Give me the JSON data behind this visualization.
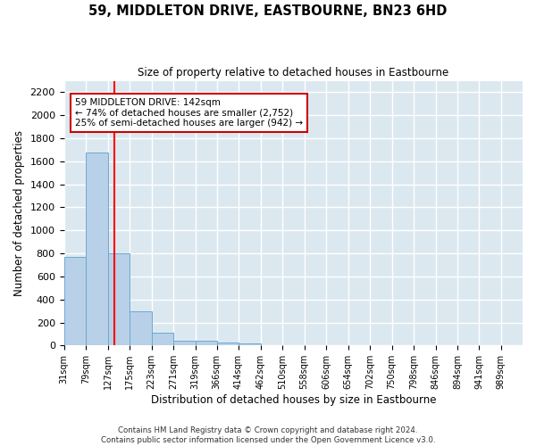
{
  "title": "59, MIDDLETON DRIVE, EASTBOURNE, BN23 6HD",
  "subtitle": "Size of property relative to detached houses in Eastbourne",
  "xlabel": "Distribution of detached houses by size in Eastbourne",
  "ylabel": "Number of detached properties",
  "bin_edges": [
    31,
    79,
    127,
    175,
    223,
    271,
    319,
    366,
    414,
    462,
    510,
    558,
    606,
    654,
    702,
    750,
    798,
    846,
    894,
    941,
    989
  ],
  "bar_heights": [
    770,
    1680,
    800,
    295,
    110,
    40,
    40,
    25,
    20,
    5,
    5,
    5,
    3,
    3,
    2,
    2,
    2,
    2,
    1,
    1
  ],
  "bar_color": "#b8d0e8",
  "bar_edge_color": "#6aaad4",
  "red_line_x": 142,
  "ylim": [
    0,
    2300
  ],
  "yticks": [
    0,
    200,
    400,
    600,
    800,
    1000,
    1200,
    1400,
    1600,
    1800,
    2000,
    2200
  ],
  "annotation_title": "59 MIDDLETON DRIVE: 142sqm",
  "annotation_line1": "← 74% of detached houses are smaller (2,752)",
  "annotation_line2": "25% of semi-detached houses are larger (942) →",
  "annotation_box_color": "#ffffff",
  "annotation_box_edge": "#cc0000",
  "background_color": "#dce8f0",
  "grid_color": "#ffffff",
  "fig_background": "#ffffff",
  "footer_line1": "Contains HM Land Registry data © Crown copyright and database right 2024.",
  "footer_line2": "Contains public sector information licensed under the Open Government Licence v3.0."
}
